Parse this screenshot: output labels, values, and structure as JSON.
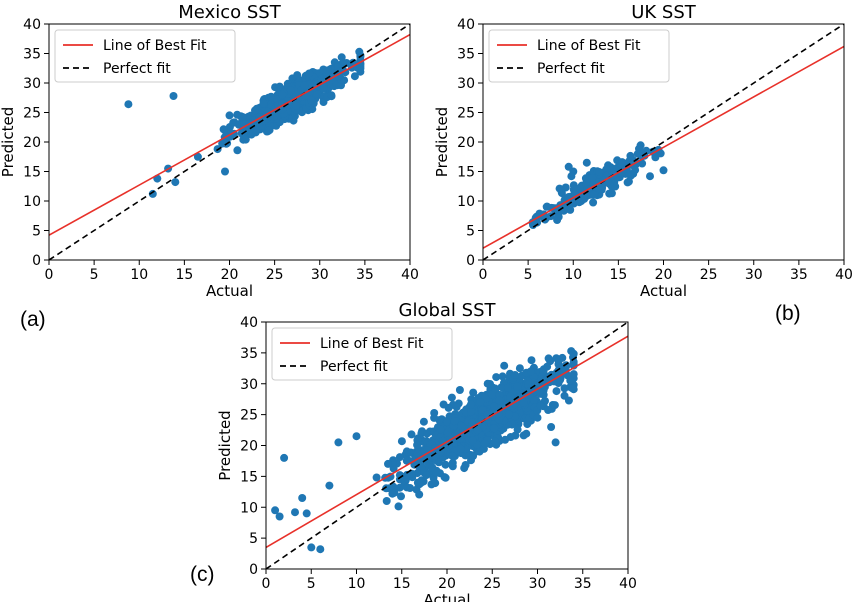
{
  "figure": {
    "panel_labels": [
      "(a)",
      "(b)",
      "(c)"
    ]
  },
  "chart_data": [
    {
      "id": "mexico",
      "type": "scatter",
      "title": "Mexico SST",
      "xlabel": "Actual",
      "ylabel": "Predicted",
      "xlim": [
        0,
        40
      ],
      "ylim": [
        0,
        40
      ],
      "xticks": [
        0,
        5,
        10,
        15,
        20,
        25,
        30,
        35,
        40
      ],
      "yticks": [
        0,
        5,
        10,
        15,
        20,
        25,
        30,
        35,
        40
      ],
      "legend": {
        "position": "top-left",
        "entries": [
          "Line of Best Fit",
          "Perfect fit"
        ]
      },
      "best_fit": {
        "slope": 0.85,
        "intercept": 4.2,
        "color": "#e8312a"
      },
      "perfect_fit": {
        "slope": 1,
        "intercept": 0,
        "color": "#000000",
        "style": "dashed"
      },
      "point_color": "#1f77b4",
      "cloud": {
        "count": 900,
        "x_range": [
          11,
          34.5
        ],
        "x_center": 27,
        "x_spread": 4.2,
        "y_noise": 1.3,
        "seed": 11
      },
      "points": [
        [
          8.8,
          26.4
        ],
        [
          13.8,
          27.8
        ],
        [
          11.5,
          11.2
        ],
        [
          12.0,
          13.8
        ],
        [
          13.2,
          15.5
        ],
        [
          14.0,
          13.2
        ],
        [
          16.5,
          17.5
        ],
        [
          20.0,
          24.5
        ],
        [
          19.5,
          15.0
        ]
      ]
    },
    {
      "id": "uk",
      "type": "scatter",
      "title": "UK SST",
      "xlabel": "Actual",
      "ylabel": "Predicted",
      "xlim": [
        0,
        40
      ],
      "ylim": [
        0,
        40
      ],
      "xticks": [
        0,
        5,
        10,
        15,
        20,
        25,
        30,
        35,
        40
      ],
      "yticks": [
        0,
        5,
        10,
        15,
        20,
        25,
        30,
        35,
        40
      ],
      "legend": {
        "position": "top-left",
        "entries": [
          "Line of Best Fit",
          "Perfect fit"
        ]
      },
      "best_fit": {
        "slope": 0.855,
        "intercept": 2.0,
        "color": "#e8312a"
      },
      "perfect_fit": {
        "slope": 1,
        "intercept": 0,
        "color": "#000000",
        "style": "dashed"
      },
      "point_color": "#1f77b4",
      "cloud": {
        "count": 280,
        "x_range": [
          5.5,
          20.5
        ],
        "x_center": 12.5,
        "x_spread": 4.0,
        "y_noise": 1.0,
        "seed": 23
      },
      "points": [
        [
          9.5,
          15.8
        ],
        [
          10.0,
          15.0
        ],
        [
          11.5,
          16.5
        ],
        [
          9.8,
          14.2
        ],
        [
          18.5,
          14.2
        ],
        [
          20.0,
          15.2
        ],
        [
          6.0,
          7.0
        ],
        [
          5.6,
          6.3
        ]
      ]
    },
    {
      "id": "global",
      "type": "scatter",
      "title": "Global SST",
      "xlabel": "Actual",
      "ylabel": "Predicted",
      "xlim": [
        0,
        40
      ],
      "ylim": [
        0,
        40
      ],
      "xticks": [
        0,
        5,
        10,
        15,
        20,
        25,
        30,
        35,
        40
      ],
      "yticks": [
        0,
        5,
        10,
        15,
        20,
        25,
        30,
        35,
        40
      ],
      "legend": {
        "position": "top-left",
        "entries": [
          "Line of Best Fit",
          "Perfect fit"
        ]
      },
      "best_fit": {
        "slope": 0.855,
        "intercept": 3.5,
        "color": "#e8312a"
      },
      "perfect_fit": {
        "slope": 1,
        "intercept": 0,
        "color": "#000000",
        "style": "dashed"
      },
      "point_color": "#1f77b4",
      "cloud": {
        "count": 1100,
        "x_range": [
          1,
          34
        ],
        "x_center": 24,
        "x_spread": 6.5,
        "y_noise": 2.2,
        "seed": 37
      },
      "points": [
        [
          2.0,
          18.0
        ],
        [
          1.0,
          9.5
        ],
        [
          1.5,
          8.5
        ],
        [
          4.0,
          11.5
        ],
        [
          5.0,
          3.5
        ],
        [
          6.0,
          3.2
        ],
        [
          8.0,
          20.5
        ],
        [
          4.5,
          9.0
        ],
        [
          10.0,
          21.5
        ],
        [
          7.0,
          13.5
        ],
        [
          32.0,
          20.5
        ],
        [
          31.5,
          23.0
        ],
        [
          30.0,
          24.5
        ],
        [
          3.2,
          9.2
        ]
      ]
    }
  ]
}
